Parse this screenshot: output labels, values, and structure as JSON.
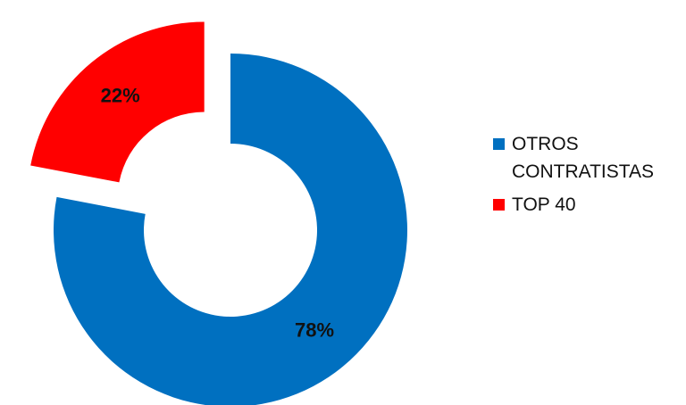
{
  "chart_data": {
    "type": "pie",
    "variant": "donut",
    "exploded_slice": "TOP 40",
    "slices": [
      {
        "label": "OTROS CONTRATISTAS",
        "value": 78,
        "display": "78%",
        "color": "#0070C0"
      },
      {
        "label": "TOP 40",
        "value": 22,
        "display": "22%",
        "color": "#FF0000"
      }
    ],
    "legend": {
      "placement": "right",
      "items": [
        {
          "label": "OTROS CONTRATISTAS",
          "color": "#0070C0"
        },
        {
          "label": "TOP 40",
          "color": "#FF0000"
        }
      ]
    }
  }
}
